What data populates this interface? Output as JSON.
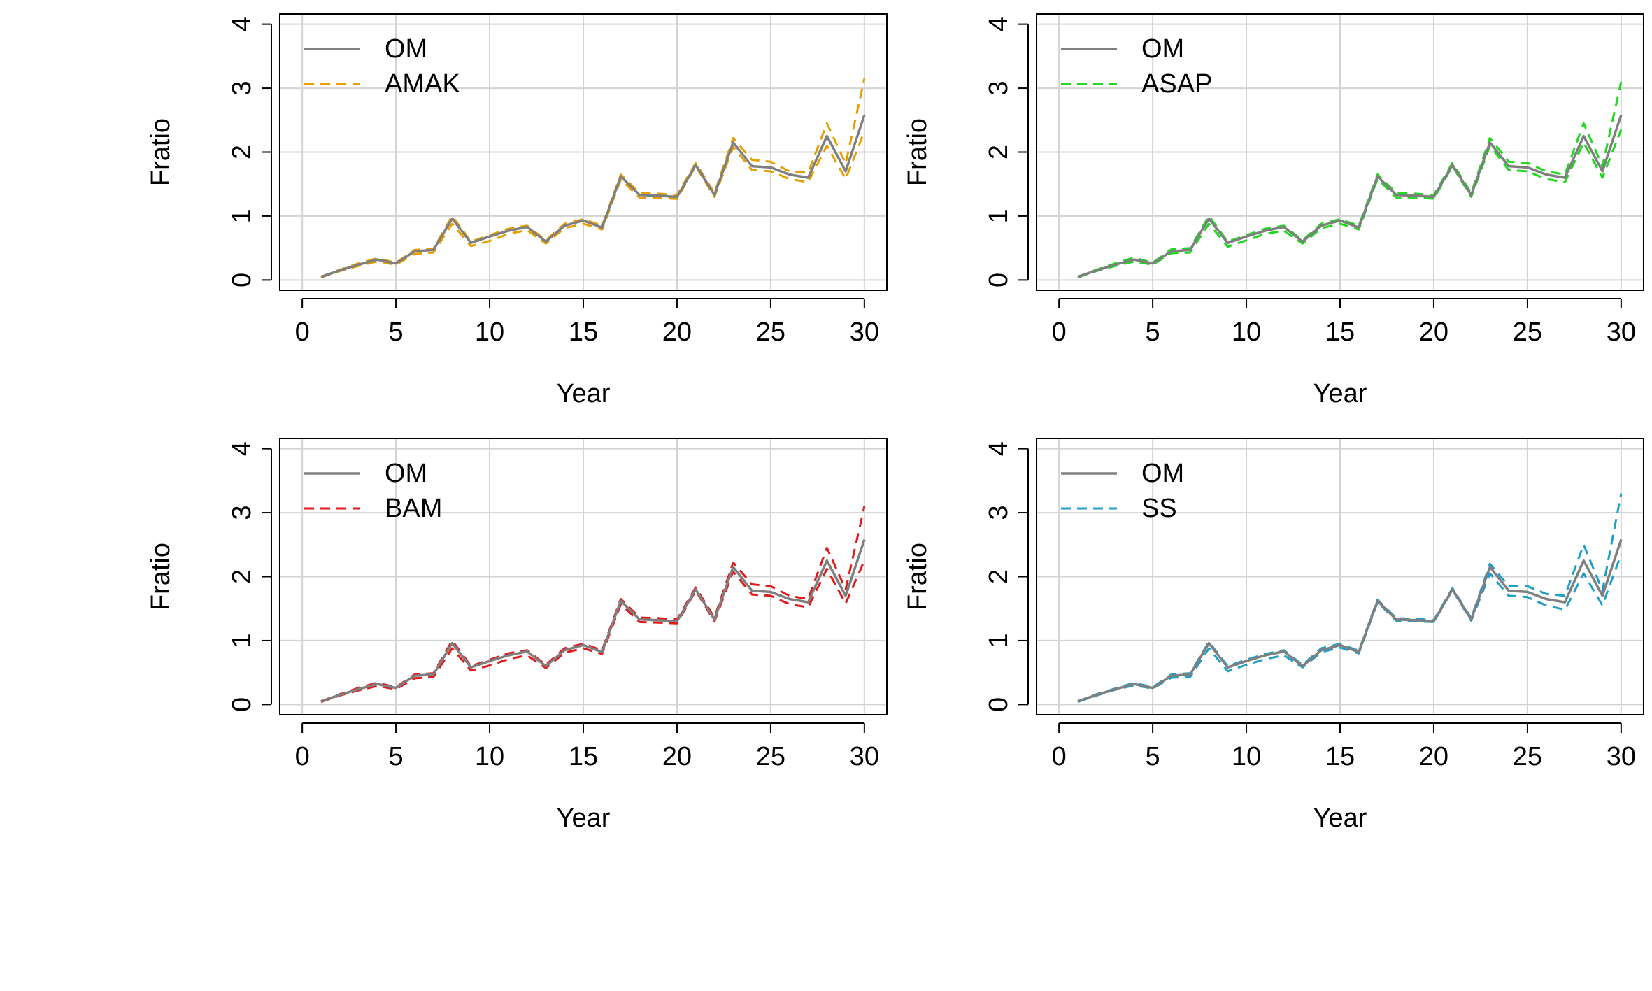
{
  "chart_data": [
    {
      "type": "line",
      "xlabel": "Year",
      "ylabel": "Fratio",
      "xlim": [
        0,
        30
      ],
      "ylim": [
        0,
        4
      ],
      "xticks": [
        0,
        5,
        10,
        15,
        20,
        25,
        30
      ],
      "yticks": [
        0,
        1,
        2,
        3,
        4
      ],
      "grid": true,
      "legend_position": "top-left",
      "x": [
        1,
        2,
        3,
        4,
        5,
        6,
        7,
        8,
        9,
        10,
        11,
        12,
        13,
        14,
        15,
        16,
        17,
        18,
        19,
        20,
        21,
        22,
        23,
        24,
        25,
        26,
        27,
        28,
        29,
        30
      ],
      "series": [
        {
          "name": "OM",
          "style": "solid",
          "color": "#7f7f7f",
          "values": [
            0.05,
            0.15,
            0.24,
            0.32,
            0.26,
            0.45,
            0.47,
            0.96,
            0.58,
            0.68,
            0.77,
            0.83,
            0.6,
            0.85,
            0.93,
            0.82,
            1.62,
            1.33,
            1.32,
            1.3,
            1.8,
            1.33,
            2.15,
            1.78,
            1.76,
            1.65,
            1.6,
            2.25,
            1.7,
            2.58
          ]
        },
        {
          "name": "AMAK",
          "style": "dashed",
          "color": "#e69f00",
          "legend": true,
          "values": [
            0.05,
            0.16,
            0.26,
            0.34,
            0.27,
            0.47,
            0.49,
            1.0,
            0.6,
            0.7,
            0.8,
            0.85,
            0.62,
            0.88,
            0.95,
            0.85,
            1.65,
            1.36,
            1.35,
            1.33,
            1.83,
            1.36,
            2.22,
            1.88,
            1.85,
            1.7,
            1.68,
            2.45,
            1.82,
            3.15
          ]
        },
        {
          "name": "",
          "style": "dashed",
          "color": "#e69f00",
          "values": [
            0.04,
            0.14,
            0.22,
            0.29,
            0.24,
            0.41,
            0.43,
            0.88,
            0.53,
            0.61,
            0.72,
            0.78,
            0.57,
            0.81,
            0.88,
            0.79,
            1.57,
            1.29,
            1.28,
            1.27,
            1.78,
            1.3,
            2.08,
            1.72,
            1.7,
            1.58,
            1.53,
            2.1,
            1.58,
            2.32
          ]
        }
      ]
    },
    {
      "type": "line",
      "xlabel": "Year",
      "ylabel": "Fratio",
      "xlim": [
        0,
        30
      ],
      "ylim": [
        0,
        4
      ],
      "xticks": [
        0,
        5,
        10,
        15,
        20,
        25,
        30
      ],
      "yticks": [
        0,
        1,
        2,
        3,
        4
      ],
      "grid": true,
      "legend_position": "top-left",
      "x": [
        1,
        2,
        3,
        4,
        5,
        6,
        7,
        8,
        9,
        10,
        11,
        12,
        13,
        14,
        15,
        16,
        17,
        18,
        19,
        20,
        21,
        22,
        23,
        24,
        25,
        26,
        27,
        28,
        29,
        30
      ],
      "series": [
        {
          "name": "OM",
          "style": "solid",
          "color": "#7f7f7f",
          "values": [
            0.05,
            0.15,
            0.24,
            0.32,
            0.26,
            0.45,
            0.47,
            0.96,
            0.58,
            0.68,
            0.77,
            0.83,
            0.6,
            0.85,
            0.93,
            0.82,
            1.62,
            1.33,
            1.32,
            1.3,
            1.8,
            1.33,
            2.15,
            1.78,
            1.76,
            1.65,
            1.6,
            2.25,
            1.7,
            2.58
          ]
        },
        {
          "name": "ASAP",
          "style": "dashed",
          "color": "#1fd81f",
          "legend": true,
          "values": [
            0.05,
            0.16,
            0.26,
            0.35,
            0.27,
            0.48,
            0.5,
            1.0,
            0.6,
            0.7,
            0.8,
            0.85,
            0.62,
            0.88,
            0.95,
            0.85,
            1.65,
            1.36,
            1.35,
            1.33,
            1.83,
            1.36,
            2.22,
            1.85,
            1.83,
            1.7,
            1.65,
            2.45,
            1.78,
            3.1
          ]
        },
        {
          "name": "",
          "style": "dashed",
          "color": "#1fd81f",
          "values": [
            0.04,
            0.14,
            0.22,
            0.29,
            0.24,
            0.42,
            0.43,
            0.88,
            0.52,
            0.62,
            0.72,
            0.77,
            0.57,
            0.81,
            0.88,
            0.79,
            1.58,
            1.29,
            1.29,
            1.27,
            1.78,
            1.3,
            2.1,
            1.72,
            1.7,
            1.58,
            1.53,
            2.15,
            1.6,
            2.35
          ]
        }
      ]
    },
    {
      "type": "line",
      "xlabel": "Year",
      "ylabel": "Fratio",
      "xlim": [
        0,
        30
      ],
      "ylim": [
        0,
        4
      ],
      "xticks": [
        0,
        5,
        10,
        15,
        20,
        25,
        30
      ],
      "yticks": [
        0,
        1,
        2,
        3,
        4
      ],
      "grid": true,
      "legend_position": "top-left",
      "x": [
        1,
        2,
        3,
        4,
        5,
        6,
        7,
        8,
        9,
        10,
        11,
        12,
        13,
        14,
        15,
        16,
        17,
        18,
        19,
        20,
        21,
        22,
        23,
        24,
        25,
        26,
        27,
        28,
        29,
        30
      ],
      "series": [
        {
          "name": "OM",
          "style": "solid",
          "color": "#7f7f7f",
          "values": [
            0.05,
            0.15,
            0.24,
            0.32,
            0.26,
            0.45,
            0.47,
            0.96,
            0.58,
            0.68,
            0.77,
            0.83,
            0.6,
            0.85,
            0.93,
            0.82,
            1.62,
            1.33,
            1.32,
            1.3,
            1.8,
            1.33,
            2.15,
            1.78,
            1.76,
            1.65,
            1.6,
            2.25,
            1.7,
            2.58
          ]
        },
        {
          "name": "BAM",
          "style": "dashed",
          "color": "#e31a1c",
          "legend": true,
          "values": [
            0.05,
            0.16,
            0.26,
            0.34,
            0.27,
            0.47,
            0.49,
            1.0,
            0.6,
            0.7,
            0.8,
            0.85,
            0.62,
            0.88,
            0.95,
            0.85,
            1.65,
            1.36,
            1.35,
            1.33,
            1.83,
            1.36,
            2.22,
            1.88,
            1.85,
            1.7,
            1.65,
            2.45,
            1.8,
            3.1
          ]
        },
        {
          "name": "",
          "style": "dashed",
          "color": "#e31a1c",
          "values": [
            0.04,
            0.14,
            0.22,
            0.29,
            0.24,
            0.41,
            0.43,
            0.88,
            0.53,
            0.61,
            0.71,
            0.77,
            0.57,
            0.81,
            0.88,
            0.79,
            1.57,
            1.29,
            1.28,
            1.27,
            1.78,
            1.3,
            2.08,
            1.72,
            1.7,
            1.57,
            1.52,
            2.12,
            1.58,
            2.25
          ]
        }
      ]
    },
    {
      "type": "line",
      "xlabel": "Year",
      "ylabel": "Fratio",
      "xlim": [
        0,
        30
      ],
      "ylim": [
        0,
        4
      ],
      "xticks": [
        0,
        5,
        10,
        15,
        20,
        25,
        30
      ],
      "yticks": [
        0,
        1,
        2,
        3,
        4
      ],
      "grid": true,
      "legend_position": "top-left",
      "x": [
        1,
        2,
        3,
        4,
        5,
        6,
        7,
        8,
        9,
        10,
        11,
        12,
        13,
        14,
        15,
        16,
        17,
        18,
        19,
        20,
        21,
        22,
        23,
        24,
        25,
        26,
        27,
        28,
        29,
        30
      ],
      "series": [
        {
          "name": "OM",
          "style": "solid",
          "color": "#7f7f7f",
          "values": [
            0.05,
            0.15,
            0.24,
            0.32,
            0.26,
            0.45,
            0.47,
            0.96,
            0.58,
            0.68,
            0.77,
            0.83,
            0.6,
            0.85,
            0.93,
            0.82,
            1.62,
            1.33,
            1.32,
            1.3,
            1.8,
            1.33,
            2.15,
            1.78,
            1.76,
            1.65,
            1.6,
            2.25,
            1.7,
            2.58
          ]
        },
        {
          "name": "SS",
          "style": "dashed",
          "color": "#1f9fc8",
          "legend": true,
          "values": [
            0.05,
            0.16,
            0.25,
            0.34,
            0.27,
            0.47,
            0.49,
            0.98,
            0.6,
            0.7,
            0.79,
            0.85,
            0.62,
            0.88,
            0.95,
            0.84,
            1.64,
            1.35,
            1.34,
            1.32,
            1.82,
            1.35,
            2.2,
            1.85,
            1.85,
            1.73,
            1.7,
            2.5,
            1.78,
            3.3
          ]
        },
        {
          "name": "",
          "style": "dashed",
          "color": "#1f9fc8",
          "values": [
            0.04,
            0.14,
            0.23,
            0.3,
            0.25,
            0.42,
            0.43,
            0.88,
            0.52,
            0.62,
            0.71,
            0.77,
            0.58,
            0.82,
            0.89,
            0.8,
            1.6,
            1.31,
            1.3,
            1.29,
            1.79,
            1.31,
            2.05,
            1.7,
            1.68,
            1.55,
            1.48,
            2.05,
            1.55,
            2.35
          ]
        }
      ]
    }
  ]
}
